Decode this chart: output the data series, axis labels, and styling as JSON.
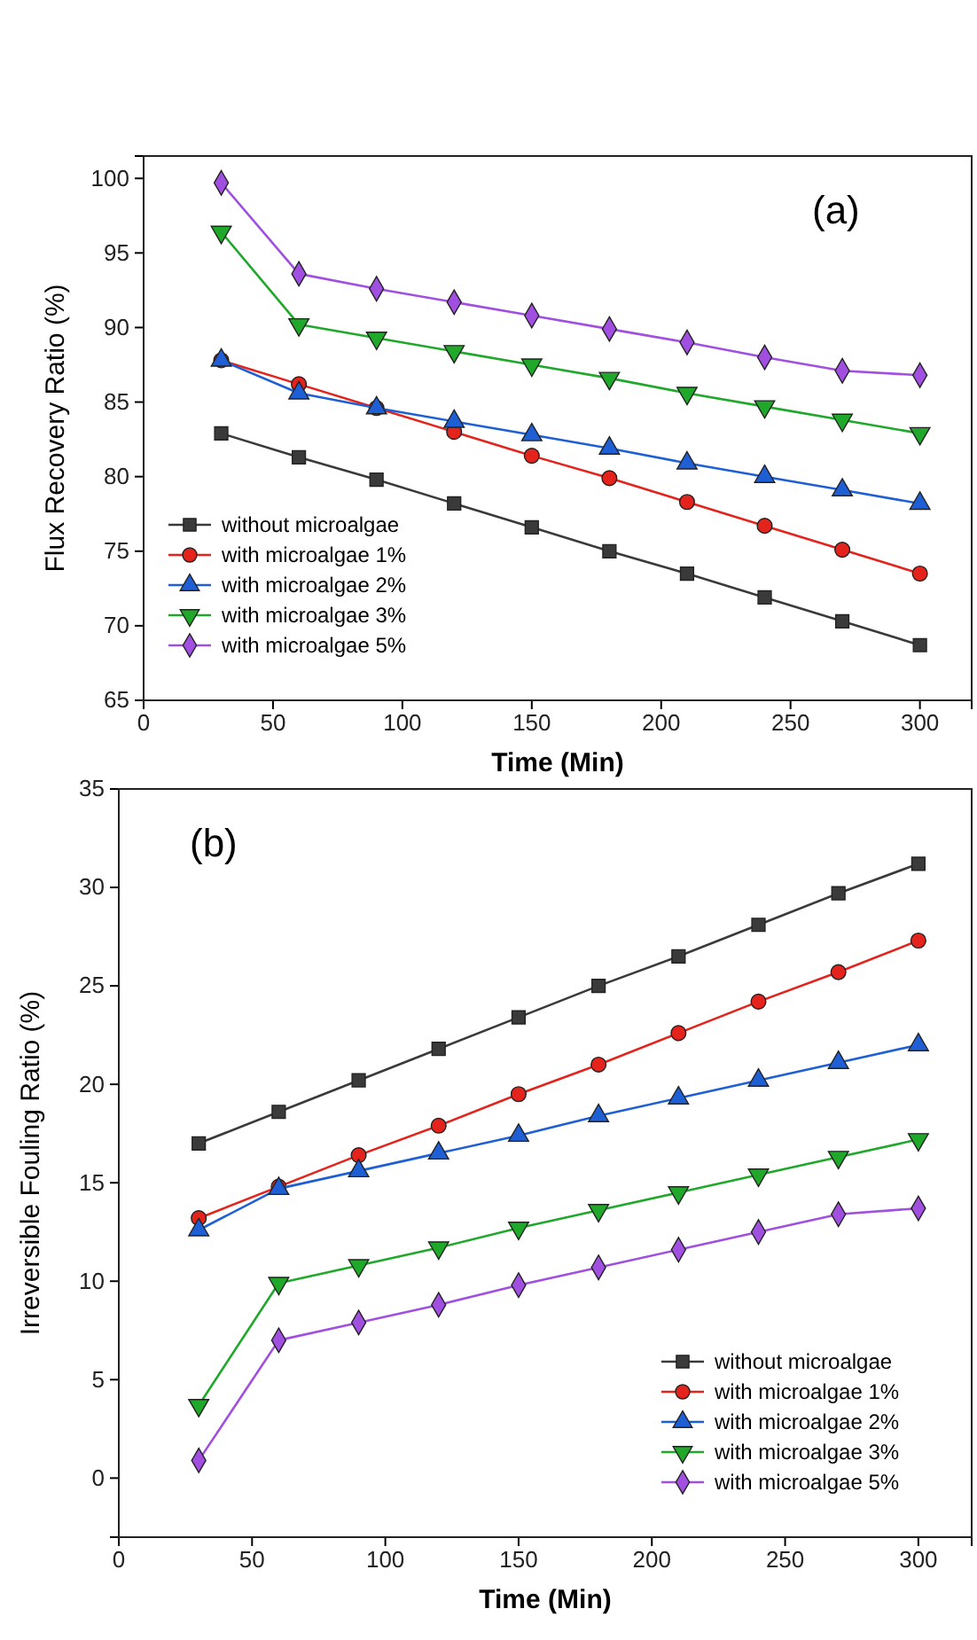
{
  "chart_data": [
    {
      "type": "line",
      "annotations": [
        "(a)"
      ],
      "xlabel": "Time (Min)",
      "ylabel": "Flux Recovery Ratio (%)",
      "x": [
        30,
        60,
        90,
        120,
        150,
        180,
        210,
        240,
        270,
        300
      ],
      "xlim": [
        0,
        320
      ],
      "xticks": [
        0,
        50,
        100,
        150,
        200,
        250,
        300
      ],
      "ylim": [
        65,
        101.5
      ],
      "yticks": [
        65,
        70,
        75,
        80,
        85,
        90,
        95,
        100
      ],
      "legend": "bottom left",
      "grid": false,
      "line_style": "solid",
      "series": [
        {
          "name": "without microalgae",
          "color": "#3a3a3a",
          "marker": "square",
          "values": [
            82.9,
            81.3,
            79.8,
            78.2,
            76.6,
            75.0,
            73.5,
            71.9,
            70.3,
            68.7
          ]
        },
        {
          "name": "with microalgae 1%",
          "color": "#e3231c",
          "marker": "circle",
          "values": [
            87.8,
            86.2,
            84.6,
            83.0,
            81.4,
            79.9,
            78.3,
            76.7,
            75.1,
            73.5
          ]
        },
        {
          "name": "with microalgae 2%",
          "color": "#1f5fd6",
          "marker": "triangle",
          "values": [
            87.8,
            85.6,
            84.6,
            83.7,
            82.8,
            81.9,
            80.9,
            80.0,
            79.1,
            78.2
          ]
        },
        {
          "name": "with microalgae 3%",
          "color": "#1fa82a",
          "marker": "triangle-down",
          "values": [
            96.4,
            90.2,
            89.3,
            88.4,
            87.5,
            86.6,
            85.6,
            84.7,
            83.8,
            82.9
          ]
        },
        {
          "name": "with microalgae 5%",
          "color": "#a04fe0",
          "marker": "diamond",
          "values": [
            99.7,
            93.6,
            92.6,
            91.7,
            90.8,
            89.9,
            89.0,
            88.0,
            87.1,
            86.8
          ]
        }
      ]
    },
    {
      "type": "line",
      "annotations": [
        "(b)"
      ],
      "xlabel": "Time (Min)",
      "ylabel": "Irreversible Fouling Ratio (%)",
      "x": [
        30,
        60,
        90,
        120,
        150,
        180,
        210,
        240,
        270,
        300
      ],
      "xlim": [
        0,
        320
      ],
      "xticks": [
        0,
        50,
        100,
        150,
        200,
        250,
        300
      ],
      "ylim": [
        -3,
        35
      ],
      "yticks": [
        0,
        5,
        10,
        15,
        20,
        25,
        30,
        35
      ],
      "legend": "bottom right",
      "grid": false,
      "line_style": "solid",
      "series": [
        {
          "name": "without microalgae",
          "color": "#3a3a3a",
          "marker": "square",
          "values": [
            17.0,
            18.6,
            20.2,
            21.8,
            23.4,
            25.0,
            26.5,
            28.1,
            29.7,
            31.2
          ]
        },
        {
          "name": "with microalgae 1%",
          "color": "#e3231c",
          "marker": "circle",
          "values": [
            13.2,
            14.8,
            16.4,
            17.9,
            19.5,
            21.0,
            22.6,
            24.2,
            25.7,
            27.3
          ]
        },
        {
          "name": "with microalgae 2%",
          "color": "#1f5fd6",
          "marker": "triangle",
          "values": [
            12.6,
            14.7,
            15.6,
            16.5,
            17.4,
            18.4,
            19.3,
            20.2,
            21.1,
            22.0
          ]
        },
        {
          "name": "with microalgae 3%",
          "color": "#1fa82a",
          "marker": "triangle-down",
          "values": [
            3.7,
            9.9,
            10.8,
            11.7,
            12.7,
            13.6,
            14.5,
            15.4,
            16.3,
            17.2
          ]
        },
        {
          "name": "with microalgae 5%",
          "color": "#a04fe0",
          "marker": "diamond",
          "values": [
            0.9,
            7.0,
            7.9,
            8.8,
            9.8,
            10.7,
            11.6,
            12.5,
            13.4,
            13.7
          ]
        }
      ]
    }
  ]
}
